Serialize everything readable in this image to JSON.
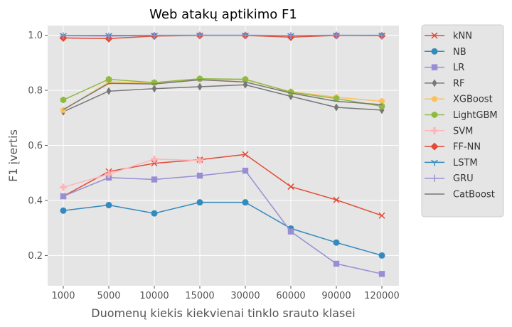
{
  "chart_data": {
    "type": "line",
    "title": "Web atakų aptikimo F1",
    "xlabel": "Duomenų kiekis kiekvienai tinklo srauto klasei",
    "ylabel": "F1 įvertis",
    "categories": [
      "1000",
      "5000",
      "10000",
      "15000",
      "30000",
      "60000",
      "90000",
      "120000"
    ],
    "y_ticks": [
      "0.2",
      "0.4",
      "0.6",
      "0.8",
      "1.0"
    ],
    "ylim": [
      0.09,
      1.035
    ],
    "grid": true,
    "legend_position": "outside-right",
    "series": [
      {
        "name": "kNN",
        "color": "#E24A33",
        "marker": "x",
        "values": [
          0.415,
          0.505,
          0.535,
          0.548,
          0.567,
          0.45,
          0.402,
          0.345
        ]
      },
      {
        "name": "NB",
        "color": "#348ABD",
        "marker": "circle",
        "values": [
          0.363,
          0.383,
          0.353,
          0.393,
          0.393,
          0.298,
          0.247,
          0.2
        ]
      },
      {
        "name": "LR",
        "color": "#988ED5",
        "marker": "square",
        "values": [
          0.415,
          0.483,
          0.476,
          0.49,
          0.508,
          0.287,
          0.17,
          0.133
        ]
      },
      {
        "name": "RF",
        "color": "#777777",
        "marker": "diamond-thin",
        "values": [
          0.722,
          0.797,
          0.806,
          0.813,
          0.82,
          0.778,
          0.738,
          0.728
        ]
      },
      {
        "name": "XGBoost",
        "color": "#FBC15E",
        "marker": "pentagon",
        "values": [
          0.728,
          0.83,
          0.827,
          0.84,
          0.838,
          0.795,
          0.775,
          0.76
        ]
      },
      {
        "name": "LightGBM",
        "color": "#8EBA42",
        "marker": "hexagon",
        "values": [
          0.765,
          0.84,
          0.828,
          0.842,
          0.84,
          0.793,
          0.77,
          0.742
        ]
      },
      {
        "name": "SVM",
        "color": "#FFB5B8",
        "marker": "plus",
        "values": [
          0.448,
          0.495,
          0.55,
          0.545,
          null,
          null,
          null,
          null
        ]
      },
      {
        "name": "FF-NN",
        "color": "#E24A33",
        "marker": "diamond",
        "values": [
          0.99,
          0.988,
          0.997,
          0.999,
          0.999,
          0.993,
          0.999,
          0.998
        ]
      },
      {
        "name": "LSTM",
        "color": "#348ABD",
        "marker": "tri-down",
        "values": [
          0.999,
          0.999,
          1.0,
          1.0,
          1.0,
          0.999,
          1.0,
          1.0
        ]
      },
      {
        "name": "GRU",
        "color": "#988ED5",
        "marker": "thin-plus",
        "values": [
          0.998,
          0.997,
          0.999,
          1.0,
          1.0,
          0.999,
          1.0,
          0.999
        ]
      },
      {
        "name": "CatBoost",
        "color": "#777777",
        "marker": "none",
        "values": [
          0.73,
          0.825,
          0.823,
          0.838,
          0.83,
          0.79,
          0.76,
          0.748
        ]
      }
    ]
  }
}
